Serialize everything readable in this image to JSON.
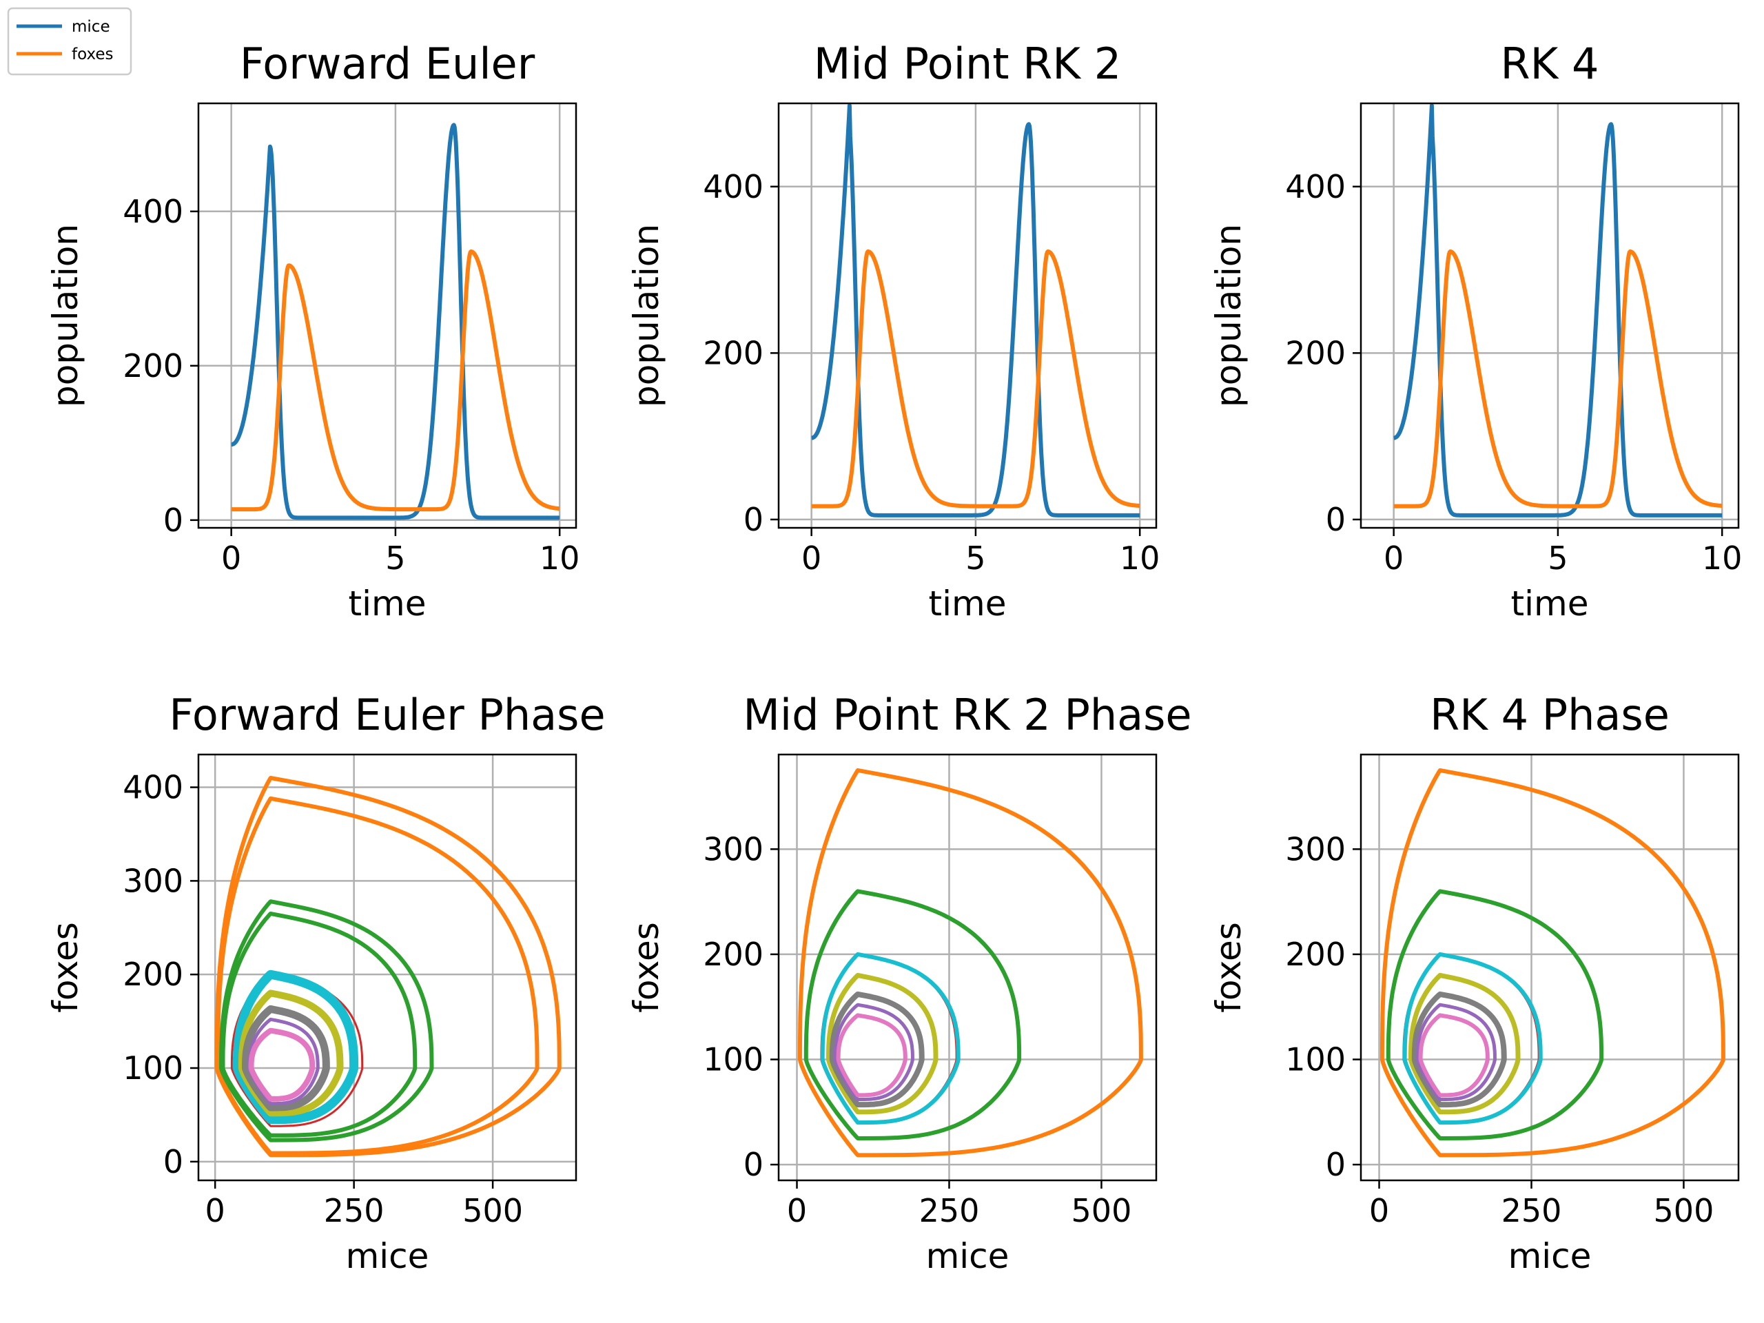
{
  "legend": [
    {
      "label": "mice",
      "color": "#1f77b4"
    },
    {
      "label": "foxes",
      "color": "#ff7f0e"
    }
  ],
  "chart_data": [
    {
      "type": "line",
      "method": "Forward Euler",
      "title": "Forward Euler",
      "xlabel": "time",
      "ylabel": "population",
      "xlim": [
        -1,
        10.5
      ],
      "ylim": [
        -10,
        540
      ],
      "xticks": [
        0,
        5,
        10
      ],
      "xtick_labels": [
        "0",
        "5",
        "10"
      ],
      "yticks": [
        0,
        200,
        400
      ],
      "ytick_labels": [
        "0",
        "200",
        "400"
      ],
      "grid": true,
      "series": [
        {
          "name": "mice",
          "color": "#1f77b4",
          "peaks": [
            {
              "t": 1.18,
              "v": 484
            },
            {
              "t": 6.78,
              "v": 512
            }
          ],
          "min": 3
        },
        {
          "name": "foxes",
          "color": "#ff7f0e",
          "peaks": [
            {
              "t": 1.75,
              "v": 330
            },
            {
              "t": 7.3,
              "v": 348
            }
          ],
          "min": 14
        }
      ]
    },
    {
      "type": "line",
      "method": "Mid Point RK 2",
      "title": "Mid Point RK 2",
      "xlabel": "time",
      "ylabel": "population",
      "xlim": [
        -1,
        10.5
      ],
      "ylim": [
        -10,
        500
      ],
      "xticks": [
        0,
        5,
        10
      ],
      "xtick_labels": [
        "0",
        "5",
        "10"
      ],
      "yticks": [
        0,
        200,
        400
      ],
      "ytick_labels": [
        "0",
        "200",
        "400"
      ],
      "grid": true,
      "series": [
        {
          "name": "mice",
          "color": "#1f77b4",
          "peaks": [
            {
              "t": 1.13,
              "v": 475
            },
            {
              "t": 6.62,
              "v": 475
            }
          ],
          "min": 5
        },
        {
          "name": "foxes",
          "color": "#ff7f0e",
          "peaks": [
            {
              "t": 1.72,
              "v": 322
            },
            {
              "t": 7.2,
              "v": 322
            }
          ],
          "min": 16
        }
      ]
    },
    {
      "type": "line",
      "method": "RK 4",
      "title": "RK 4",
      "xlabel": "time",
      "ylabel": "population",
      "xlim": [
        -1,
        10.5
      ],
      "ylim": [
        -10,
        500
      ],
      "xticks": [
        0,
        5,
        10
      ],
      "xtick_labels": [
        "0",
        "5",
        "10"
      ],
      "yticks": [
        0,
        200,
        400
      ],
      "ytick_labels": [
        "0",
        "200",
        "400"
      ],
      "grid": true,
      "series": [
        {
          "name": "mice",
          "color": "#1f77b4",
          "peaks": [
            {
              "t": 1.13,
              "v": 475
            },
            {
              "t": 6.62,
              "v": 475
            }
          ],
          "min": 5
        },
        {
          "name": "foxes",
          "color": "#ff7f0e",
          "peaks": [
            {
              "t": 1.72,
              "v": 322
            },
            {
              "t": 7.2,
              "v": 322
            }
          ],
          "min": 16
        }
      ]
    },
    {
      "type": "phase",
      "method": "Forward Euler",
      "title": "Forward Euler Phase",
      "xlabel": "mice",
      "ylabel": "foxes",
      "xlim": [
        -30,
        650
      ],
      "ylim": [
        -20,
        435
      ],
      "xticks": [
        0,
        250,
        500
      ],
      "xtick_labels": [
        "0",
        "250",
        "500"
      ],
      "yticks": [
        0,
        100,
        200,
        300,
        400
      ],
      "ytick_labels": [
        "0",
        "100",
        "200",
        "300",
        "400"
      ],
      "grid": true,
      "orbits": [
        {
          "color": "#ff7f0e",
          "width": 6,
          "x_min": 5,
          "x_max": 580,
          "y_min": 9,
          "y_max": 388
        },
        {
          "color": "#ff7f0e",
          "width": 6,
          "x_min": 3,
          "x_max": 620,
          "y_min": 7,
          "y_max": 410
        },
        {
          "color": "#2ca02c",
          "width": 6,
          "x_min": 14,
          "x_max": 360,
          "y_min": 28,
          "y_max": 265
        },
        {
          "color": "#2ca02c",
          "width": 6,
          "x_min": 11,
          "x_max": 390,
          "y_min": 23,
          "y_max": 278
        },
        {
          "color": "#d62728",
          "width": 3,
          "x_min": 30,
          "x_max": 265,
          "y_min": 38,
          "y_max": 200
        },
        {
          "color": "#17becf",
          "width": 13,
          "x_min": 40,
          "x_max": 250,
          "y_min": 45,
          "y_max": 200
        },
        {
          "color": "#bcbd22",
          "width": 10,
          "x_min": 48,
          "x_max": 225,
          "y_min": 52,
          "y_max": 180
        },
        {
          "color": "#7f7f7f",
          "width": 11,
          "x_min": 55,
          "x_max": 200,
          "y_min": 58,
          "y_max": 163
        },
        {
          "color": "#9467bd",
          "width": 5,
          "x_min": 62,
          "x_max": 185,
          "y_min": 62,
          "y_max": 152
        },
        {
          "color": "#e377c2",
          "width": 8,
          "x_min": 65,
          "x_max": 175,
          "y_min": 67,
          "y_max": 140
        }
      ]
    },
    {
      "type": "phase",
      "method": "Mid Point RK 2",
      "title": "Mid Point RK 2 Phase",
      "xlabel": "mice",
      "ylabel": "foxes",
      "xlim": [
        -30,
        590
      ],
      "ylim": [
        -15,
        390
      ],
      "xticks": [
        0,
        250,
        500
      ],
      "xtick_labels": [
        "0",
        "250",
        "500"
      ],
      "yticks": [
        0,
        100,
        200,
        300
      ],
      "ytick_labels": [
        "0",
        "100",
        "200",
        "300"
      ],
      "grid": true,
      "orbits": [
        {
          "color": "#ff7f0e",
          "width": 6,
          "x_min": 5,
          "x_max": 565,
          "y_min": 9,
          "y_max": 375
        },
        {
          "color": "#2ca02c",
          "width": 6,
          "x_min": 15,
          "x_max": 365,
          "y_min": 25,
          "y_max": 260
        },
        {
          "color": "#d62728",
          "width": 3,
          "x_min": 40,
          "x_max": 262,
          "y_min": 40,
          "y_max": 200
        },
        {
          "color": "#17becf",
          "width": 6,
          "x_min": 42,
          "x_max": 265,
          "y_min": 40,
          "y_max": 200
        },
        {
          "color": "#bcbd22",
          "width": 7,
          "x_min": 52,
          "x_max": 228,
          "y_min": 50,
          "y_max": 180
        },
        {
          "color": "#7f7f7f",
          "width": 8,
          "x_min": 58,
          "x_max": 205,
          "y_min": 57,
          "y_max": 162
        },
        {
          "color": "#9467bd",
          "width": 5,
          "x_min": 63,
          "x_max": 190,
          "y_min": 62,
          "y_max": 152
        },
        {
          "color": "#e377c2",
          "width": 6,
          "x_min": 68,
          "x_max": 178,
          "y_min": 66,
          "y_max": 142
        }
      ]
    },
    {
      "type": "phase",
      "method": "RK 4",
      "title": "RK 4 Phase",
      "xlabel": "mice",
      "ylabel": "foxes",
      "xlim": [
        -30,
        590
      ],
      "ylim": [
        -15,
        390
      ],
      "xticks": [
        0,
        250,
        500
      ],
      "xtick_labels": [
        "0",
        "250",
        "500"
      ],
      "yticks": [
        0,
        100,
        200,
        300
      ],
      "ytick_labels": [
        "0",
        "100",
        "200",
        "300"
      ],
      "grid": true,
      "orbits": [
        {
          "color": "#ff7f0e",
          "width": 6,
          "x_min": 5,
          "x_max": 565,
          "y_min": 9,
          "y_max": 375
        },
        {
          "color": "#2ca02c",
          "width": 6,
          "x_min": 15,
          "x_max": 365,
          "y_min": 25,
          "y_max": 260
        },
        {
          "color": "#d62728",
          "width": 3,
          "x_min": 40,
          "x_max": 262,
          "y_min": 40,
          "y_max": 200
        },
        {
          "color": "#17becf",
          "width": 6,
          "x_min": 42,
          "x_max": 265,
          "y_min": 40,
          "y_max": 200
        },
        {
          "color": "#bcbd22",
          "width": 7,
          "x_min": 52,
          "x_max": 228,
          "y_min": 50,
          "y_max": 180
        },
        {
          "color": "#7f7f7f",
          "width": 8,
          "x_min": 58,
          "x_max": 205,
          "y_min": 57,
          "y_max": 162
        },
        {
          "color": "#9467bd",
          "width": 5,
          "x_min": 63,
          "x_max": 190,
          "y_min": 62,
          "y_max": 152
        },
        {
          "color": "#e377c2",
          "width": 6,
          "x_min": 68,
          "x_max": 178,
          "y_min": 66,
          "y_max": 142
        }
      ]
    }
  ]
}
